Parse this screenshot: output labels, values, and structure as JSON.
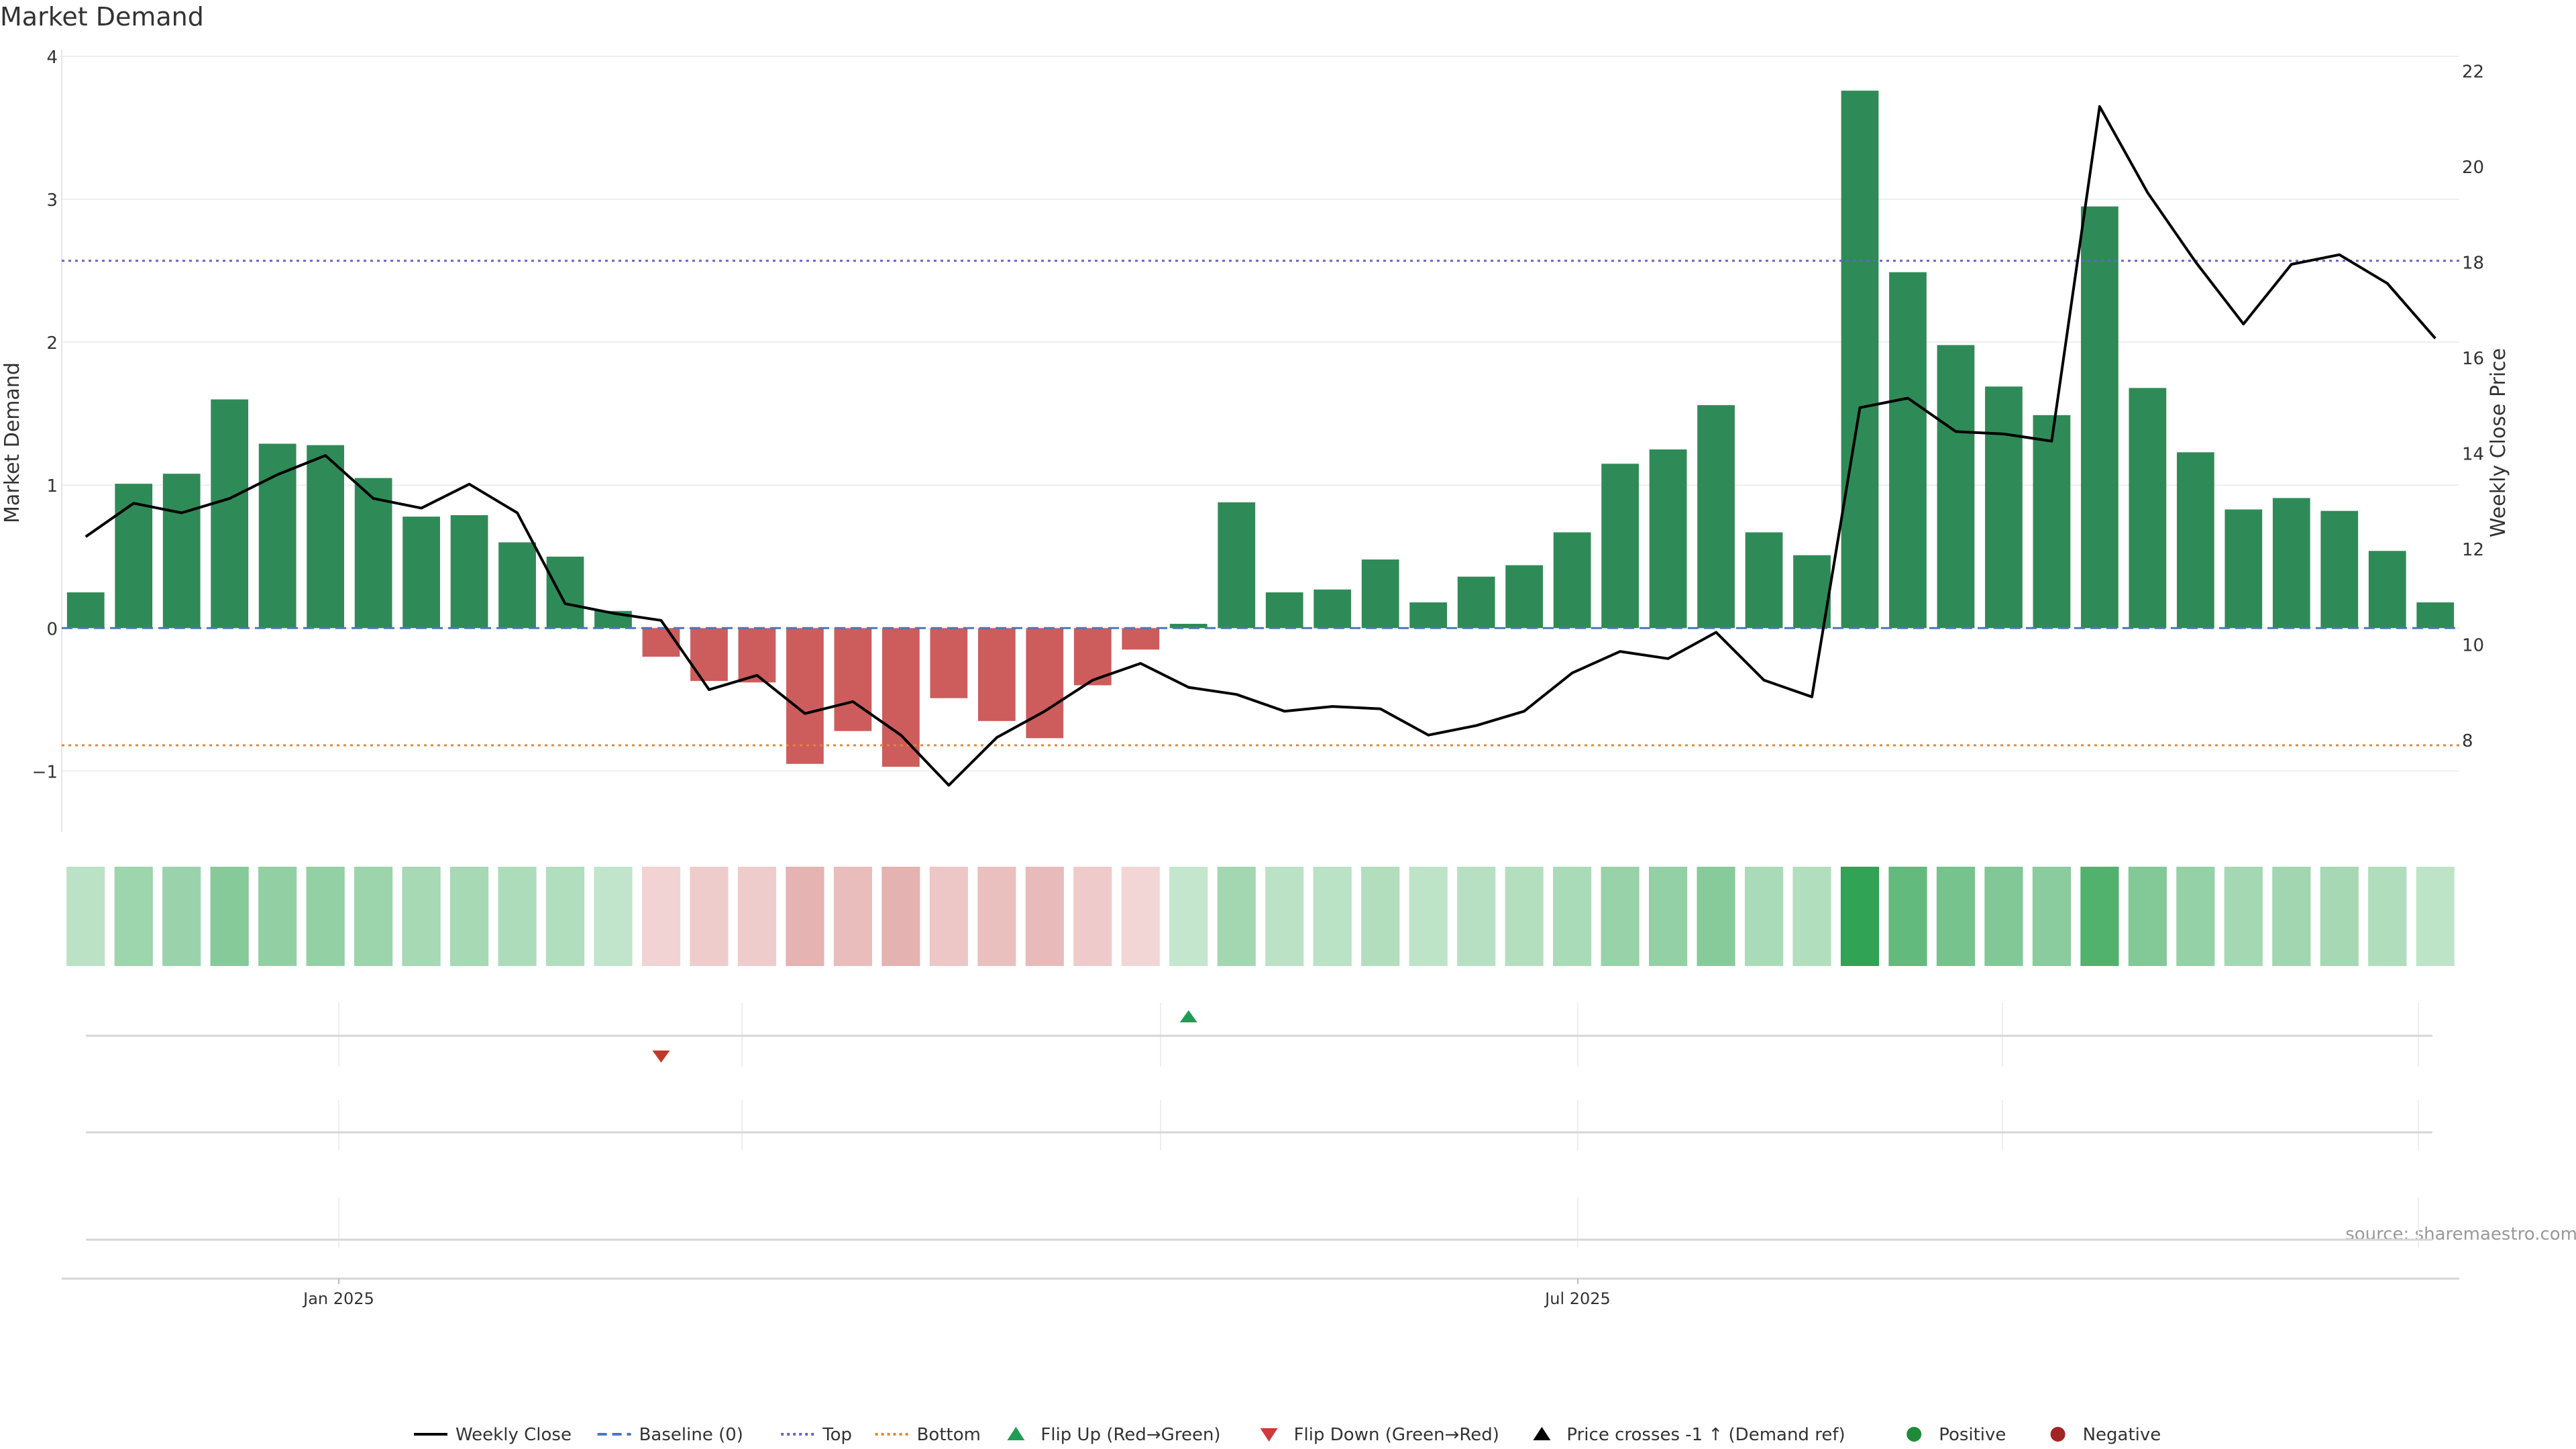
{
  "chart_data": {
    "type": "bar",
    "title": "Market Demand",
    "ylabel": "Market Demand",
    "ylabel_right": "Weekly Close Price",
    "source": "source: sharemaestro.com",
    "ylim": [
      -1.2,
      4.0
    ],
    "yticks": [
      -1,
      0,
      1,
      2,
      3,
      4
    ],
    "y2lim": [
      6.75,
      22.3
    ],
    "y2ticks": [
      8,
      10,
      12,
      14,
      16,
      18,
      20,
      22
    ],
    "xticks": [
      "Jan 2025",
      "Jul 2025"
    ],
    "grid": true,
    "legend_position": "bottom",
    "series": [
      {
        "name": "Market Demand",
        "values": [
          0.25,
          1.01,
          1.08,
          1.6,
          1.29,
          1.28,
          1.05,
          0.78,
          0.79,
          0.6,
          0.5,
          0.12,
          -0.2,
          -0.37,
          -0.38,
          -0.95,
          -0.72,
          -0.97,
          -0.49,
          -0.65,
          -0.77,
          -0.4,
          -0.15,
          0.03,
          0.88,
          0.25,
          0.27,
          0.48,
          0.18,
          0.36,
          0.44,
          0.67,
          1.15,
          1.25,
          1.56,
          0.67,
          0.51,
          3.76,
          2.49,
          1.98,
          1.69,
          1.49,
          2.95,
          1.68,
          1.23,
          0.83,
          0.91,
          0.82,
          0.54,
          0.18
        ]
      },
      {
        "name": "Weekly Close",
        "values": [
          12.25,
          12.95,
          12.75,
          13.05,
          13.55,
          13.95,
          13.05,
          12.85,
          13.35,
          12.75,
          10.85,
          10.65,
          10.5,
          9.05,
          9.35,
          8.55,
          8.8,
          8.1,
          7.05,
          8.05,
          8.6,
          9.25,
          9.6,
          9.1,
          8.95,
          8.6,
          8.7,
          8.65,
          8.1,
          8.3,
          8.6,
          9.4,
          9.85,
          9.7,
          10.25,
          9.25,
          8.9,
          14.95,
          15.15,
          14.45,
          14.4,
          14.25,
          21.25,
          19.45,
          18.0,
          16.7,
          17.95,
          18.15,
          17.55,
          16.4
        ]
      }
    ],
    "reference_lines": [
      {
        "name": "Baseline (0)",
        "value": 0,
        "color": "#4a78b8",
        "style": "dashed"
      },
      {
        "name": "Top",
        "value": 2.57,
        "color": "#6b5fcf",
        "style": "dotted"
      },
      {
        "name": "Bottom",
        "value": -0.82,
        "color": "#e08a30",
        "style": "dotted"
      }
    ],
    "flips": [
      {
        "name": "Flip Down (Green→Red)",
        "index": 12,
        "color": "#c0392b"
      },
      {
        "name": "Flip Up (Red→Green)",
        "index": 23,
        "color": "#1f9d55"
      }
    ],
    "colors": {
      "positive": "#2e8b57",
      "negative": "#cd5c5c",
      "weekly_close": "#000000"
    },
    "legend": [
      {
        "label": "Weekly Close",
        "kind": "line",
        "color": "#000000"
      },
      {
        "label": "Baseline (0)",
        "kind": "dash",
        "color": "#4a78b8"
      },
      {
        "label": "Top",
        "kind": "dot",
        "color": "#6b5fcf"
      },
      {
        "label": "Bottom",
        "kind": "dot",
        "color": "#e08a30"
      },
      {
        "label": "Flip Up (Red→Green)",
        "kind": "tri-up",
        "color": "#1f9d55"
      },
      {
        "label": "Flip Down (Green→Red)",
        "kind": "tri-down",
        "color": "#d03a3a"
      },
      {
        "label": "Price crosses -1 ↑ (Demand ref)",
        "kind": "tri-up",
        "color": "#000000"
      },
      {
        "label": "Positive",
        "kind": "circle",
        "color": "#1f8a3a"
      },
      {
        "label": "Negative",
        "kind": "circle",
        "color": "#a32424"
      }
    ]
  }
}
